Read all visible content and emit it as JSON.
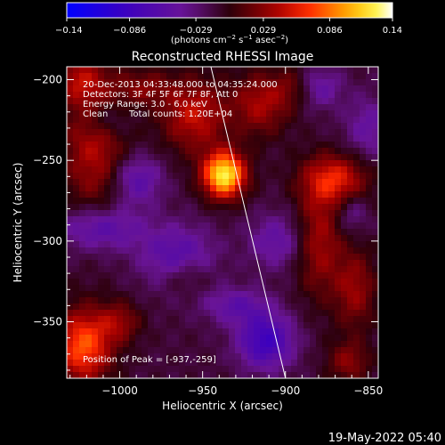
{
  "colorbar": {
    "ticks": [
      {
        "value": -0.14,
        "label": "−0.14"
      },
      {
        "value": -0.086,
        "label": "−0.086"
      },
      {
        "value": -0.029,
        "label": "−0.029"
      },
      {
        "value": 0.029,
        "label": "0.029"
      },
      {
        "value": 0.086,
        "label": "0.086"
      },
      {
        "value": 0.14,
        "label": "0.14"
      }
    ],
    "range": [
      -0.14,
      0.14
    ],
    "unit_prefix": "(photons cm",
    "unit_exp1": "−2",
    "unit_mid": " s",
    "unit_exp2": "−1",
    "unit_mid2": " asec",
    "unit_exp3": "−2",
    "unit_suffix": ")"
  },
  "chart_data": {
    "type": "heatmap",
    "title": "Reconstructed RHESSI Image",
    "xlabel": "Heliocentric X (arcsec)",
    "ylabel": "Heliocentric Y (arcsec)",
    "xlim": [
      -1032,
      -844
    ],
    "ylim": [
      -385,
      -192
    ],
    "xticks": [
      {
        "value": -1000,
        "label": "−1000"
      },
      {
        "value": -950,
        "label": "−950"
      },
      {
        "value": -900,
        "label": "−900"
      },
      {
        "value": -850,
        "label": "−850"
      }
    ],
    "yticks": [
      {
        "value": -200,
        "label": "−200"
      },
      {
        "value": -250,
        "label": "−250"
      },
      {
        "value": -300,
        "label": "−300"
      },
      {
        "value": -350,
        "label": "−350"
      }
    ],
    "peak": {
      "x": -937,
      "y": -259
    },
    "limb_line": [
      {
        "x": -945,
        "y": -192
      },
      {
        "x": -900,
        "y": -385
      }
    ],
    "sources": [
      {
        "x": -937,
        "y": -259,
        "sx": 9,
        "sy": 10,
        "a": 0.14
      },
      {
        "x": -955,
        "y": -222,
        "sx": 14,
        "sy": 16,
        "a": 0.06
      },
      {
        "x": -915,
        "y": -215,
        "sx": 12,
        "sy": 14,
        "a": 0.05
      },
      {
        "x": -1015,
        "y": -240,
        "sx": 14,
        "sy": 32,
        "a": 0.055
      },
      {
        "x": -1025,
        "y": -200,
        "sx": 10,
        "sy": 10,
        "a": 0.04
      },
      {
        "x": -985,
        "y": -205,
        "sx": 12,
        "sy": 8,
        "a": 0.035
      },
      {
        "x": -1022,
        "y": -365,
        "sx": 12,
        "sy": 16,
        "a": 0.09
      },
      {
        "x": -1000,
        "y": -350,
        "sx": 9,
        "sy": 9,
        "a": 0.04
      },
      {
        "x": -870,
        "y": -262,
        "sx": 14,
        "sy": 11,
        "a": 0.07
      },
      {
        "x": -880,
        "y": -300,
        "sx": 10,
        "sy": 24,
        "a": 0.05
      },
      {
        "x": -858,
        "y": -330,
        "sx": 9,
        "sy": 18,
        "a": 0.045
      },
      {
        "x": -862,
        "y": -375,
        "sx": 9,
        "sy": 9,
        "a": 0.04
      },
      {
        "x": -895,
        "y": -205,
        "sx": 9,
        "sy": 9,
        "a": 0.03
      },
      {
        "x": -960,
        "y": -322,
        "sx": 10,
        "sy": 8,
        "a": 0.03
      },
      {
        "x": -912,
        "y": -362,
        "sx": 12,
        "sy": 12,
        "a": -0.075
      },
      {
        "x": -1012,
        "y": -292,
        "sx": 18,
        "sy": 10,
        "a": -0.055
      },
      {
        "x": -990,
        "y": -262,
        "sx": 11,
        "sy": 11,
        "a": -0.05
      },
      {
        "x": -1008,
        "y": -225,
        "sx": 10,
        "sy": 8,
        "a": -0.035
      },
      {
        "x": -965,
        "y": -310,
        "sx": 16,
        "sy": 14,
        "a": -0.05
      },
      {
        "x": -905,
        "y": -300,
        "sx": 12,
        "sy": 12,
        "a": -0.04
      },
      {
        "x": -880,
        "y": -205,
        "sx": 10,
        "sy": 9,
        "a": -0.04
      },
      {
        "x": -850,
        "y": -230,
        "sx": 10,
        "sy": 14,
        "a": -0.035
      },
      {
        "x": -930,
        "y": -340,
        "sx": 14,
        "sy": 8,
        "a": -0.04
      },
      {
        "x": -860,
        "y": -282,
        "sx": 7,
        "sy": 9,
        "a": -0.03
      }
    ],
    "annotations": {
      "line1": "20-Dec-2013 04:33:48.000 to 04:35:24.000",
      "line2": "Detectors: 3F 4F 5F 6F 7F 8F, Att 0",
      "line3": "Energy Range: 3.0 - 6.0 keV",
      "line4_a": "Clean",
      "line4_b": "Total counts: 1.20E+04",
      "peak_label": "Position of Peak = [-937,-259]"
    }
  },
  "footer": {
    "date": "19-May-2022 05:40"
  }
}
